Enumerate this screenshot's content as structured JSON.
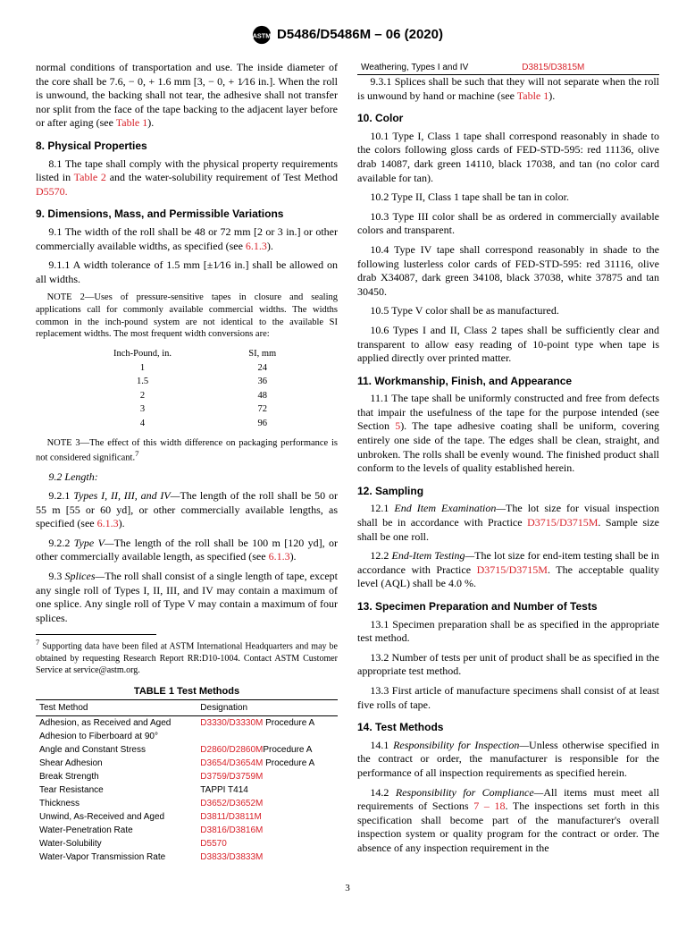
{
  "header": "D5486/D5486M – 06 (2020)",
  "intro_para": "normal conditions of transportation and use. The inside diameter of the core shall be 7.6, − 0, + 1.6 mm [3, − 0, + 1⁄16 in.]. When the roll is unwound, the backing shall not tear, the adhesive shall not transfer nor split from the face of the tape backing to the adjacent layer before or after aging (see ",
  "table1_ref": "Table 1",
  "intro_end": ").",
  "s8_title": "8.  Physical Properties",
  "s8_1a": "8.1 The tape shall comply with the physical property requirements listed in ",
  "table2_ref": "Table 2",
  "s8_1b": " and the water-solubility requirement of Test Method ",
  "d5570": "D5570.",
  "s9_title": "9.  Dimensions, Mass, and Permissible Variations",
  "s9_1a": "9.1 The width of the roll shall be 48 or 72 mm [2 or 3 in.] or other commercially available widths, as specified (see ",
  "s613": "6.1.3",
  "close_paren_dot": ").",
  "s9_1_1": "9.1.1 A width tolerance of 1.5 mm [±1⁄16 in.] shall be allowed on all widths.",
  "note2": "NOTE 2—Uses of pressure-sensitive tapes in closure and sealing applications call for commonly available commercial widths. The widths common in the inch-pound system are not identical to the available SI replacement widths. The most frequent width conversions are:",
  "conv_head_in": "Inch-Pound, in.",
  "conv_head_si": "SI, mm",
  "conv_rows": [
    [
      "1",
      "24"
    ],
    [
      "1.5",
      "36"
    ],
    [
      "2",
      "48"
    ],
    [
      "3",
      "72"
    ],
    [
      "4",
      "96"
    ]
  ],
  "note3a": "NOTE 3—The effect of this width difference on packaging performance is not considered significant.",
  "note3sup": "7",
  "s9_2": "9.2 Length:",
  "s9_2_1a": "9.2.1 Types I, II, III, and IV—",
  "s9_2_1b": "The length of the roll shall be 50 or 55 m [55 or 60 yd], or other commercially available lengths, as specified (see ",
  "s9_2_2a": "9.2.2 Type V—",
  "s9_2_2b": "The length of the roll shall be 100 m [120 yd], or other commercially available length, as specified (see ",
  "s9_3a": "9.3 Splices—",
  "s9_3b": "The roll shall consist of a single length of tape, except any single roll of Types I, II, III, and IV may contain a maximum of one splice. Any single roll of Type V may contain a maximum of four splices.",
  "footnote7": "7 Supporting data have been filed at ASTM International Headquarters and may be obtained by requesting Research Report RR:D10-1004. Contact ASTM Customer Service at service@astm.org.",
  "tbl1_title": "TABLE 1 Test Methods",
  "tbl1_h1": "Test Method",
  "tbl1_h2": "Designation",
  "tbl1_rows": [
    [
      "Adhesion, as Received and Aged",
      "D3330/D3330M",
      " Procedure A"
    ],
    [
      "Adhesion to Fiberboard at 90°",
      "",
      ""
    ],
    [
      "   Angle and Constant Stress",
      "D2860/D2860M",
      "Procedure A"
    ],
    [
      "Shear Adhesion",
      "D3654/D3654M",
      " Procedure A"
    ],
    [
      "Break Strength",
      "D3759/D3759M",
      ""
    ],
    [
      "Tear Resistance",
      "",
      "TAPPI T414"
    ],
    [
      "Thickness",
      "D3652/D3652M",
      ""
    ],
    [
      "Unwind, As-Received and Aged",
      "D3811/D3811M",
      ""
    ],
    [
      "Water-Penetration Rate",
      "D3816/D3816M",
      ""
    ],
    [
      "Water-Solubility",
      "D5570",
      ""
    ],
    [
      "Water-Vapor Transmission Rate",
      "D3833/D3833M",
      ""
    ],
    [
      "Weathering, Types I and IV",
      "D3815/D3815M",
      ""
    ]
  ],
  "s9_3_1a": "9.3.1 Splices shall be such that they will not separate when the roll is unwound by hand or machine (see ",
  "s10_title": "10.  Color",
  "s10_1": "10.1 Type I, Class 1 tape shall correspond reasonably in shade to the colors following gloss cards of FED-STD-595: red 11136, olive drab 14087, dark green 14110, black 17038, and tan (no color card available for tan).",
  "s10_2": "10.2 Type II, Class 1 tape shall be tan in color.",
  "s10_3": "10.3 Type III color shall be as ordered in commercially available colors and transparent.",
  "s10_4": "10.4 Type IV tape shall correspond reasonably in shade to the following lusterless color cards of FED-STD-595: red 31116, olive drab X34087, dark green 34108, black 37038, white 37875 and tan 30450.",
  "s10_5": "10.5 Type V color shall be as manufactured.",
  "s10_6": "10.6 Types I and II, Class 2 tapes shall be sufficiently clear and transparent to allow easy reading of 10-point type when tape is applied directly over printed matter.",
  "s11_title": "11.  Workmanship, Finish, and Appearance",
  "s11_1a": "11.1 The tape shall be uniformly constructed and free from defects that impair the usefulness of the tape for the purpose intended (see Section ",
  "sec5": "5",
  "s11_1b": "). The tape adhesive coating shall be uniform, covering entirely one side of the tape. The edges shall be clean, straight, and unbroken. The rolls shall be evenly wound. The finished product shall conform to the levels of quality established herein.",
  "s12_title": "12.  Sampling",
  "s12_1a": "12.1 End Item Examination—",
  "s12_1b": "The lot size for visual inspection shall be in accordance with Practice ",
  "d3715": "D3715/D3715M",
  "s12_1c": ". Sample size shall be one roll.",
  "s12_2a": "12.2 End-Item Testing—",
  "s12_2b": "The lot size for end-item testing shall be in accordance with Practice ",
  "s12_2c": ". The acceptable quality level (AQL) shall be 4.0 %.",
  "s13_title": "13.  Specimen Preparation and Number of Tests",
  "s13_1": "13.1 Specimen preparation shall be as specified in the appropriate test method.",
  "s13_2": "13.2 Number of tests per unit of product shall be as specified in the appropriate test method.",
  "s13_3": "13.3 First article of manufacture specimens shall consist of at least five rolls of tape.",
  "s14_title": "14.  Test Methods",
  "s14_1a": "14.1 Responsibility for Inspection—",
  "s14_1b": "Unless otherwise specified in the contract or order, the manufacturer is responsible for the performance of all inspection requirements as specified herein.",
  "s14_2a": "14.2 Responsibility for Compliance—",
  "s14_2b": "All items must meet all requirements of Sections ",
  "sec7_18": "7 – 18",
  "s14_2c": ". The inspections set forth in this specification shall become part of the manufacturer's overall inspection system or quality program for the contract or order. The absence of any inspection requirement in the",
  "pagenum": "3"
}
